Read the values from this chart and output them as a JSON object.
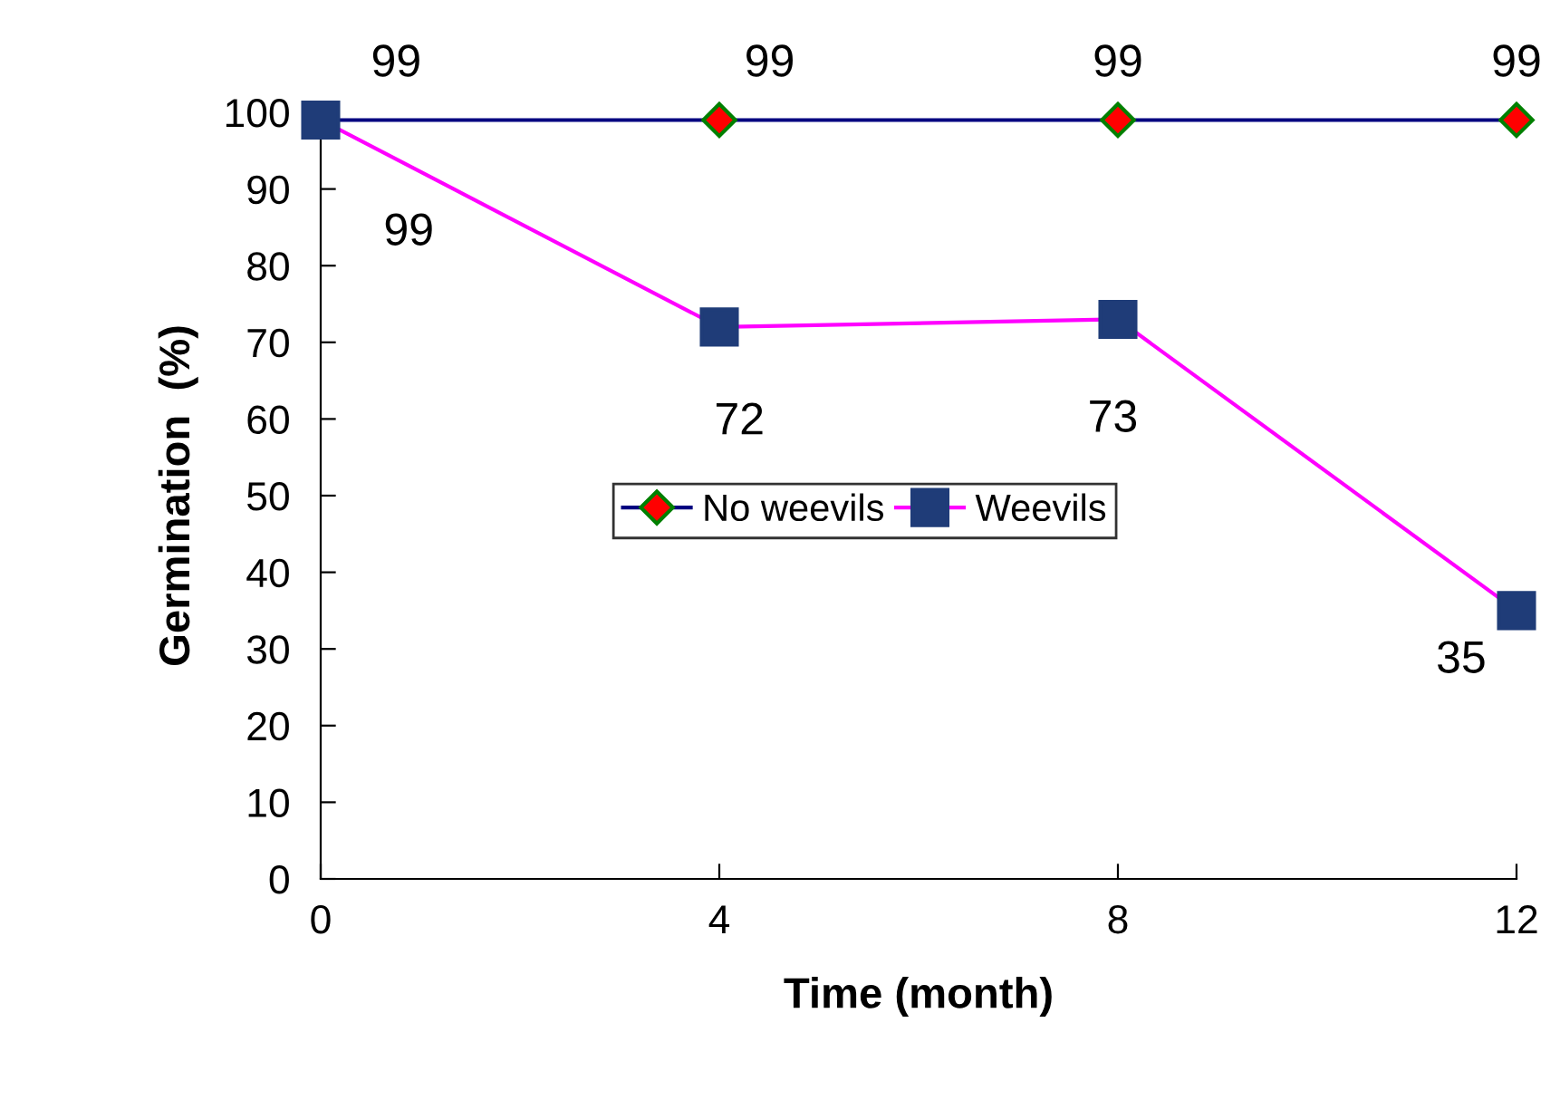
{
  "chart_data": {
    "type": "line",
    "xlabel": "Time (month)",
    "ylabel": "Germination  (%)",
    "x": [
      0,
      4,
      8,
      12
    ],
    "xlim": [
      0,
      12
    ],
    "xticks": [
      0,
      4,
      8,
      12
    ],
    "ylim": [
      0,
      100
    ],
    "yticks": [
      0,
      10,
      20,
      30,
      40,
      50,
      60,
      70,
      80,
      90,
      100
    ],
    "series": [
      {
        "name": "No weevils",
        "color": "#ff0000",
        "marker": "diamond",
        "values": [
          99,
          99,
          99,
          99
        ]
      },
      {
        "name": "Weevils",
        "color": "#1f3c78",
        "marker": "square",
        "values": [
          99,
          72,
          73,
          35
        ]
      }
    ],
    "data_labels": true,
    "legend": "center",
    "grid": false
  }
}
